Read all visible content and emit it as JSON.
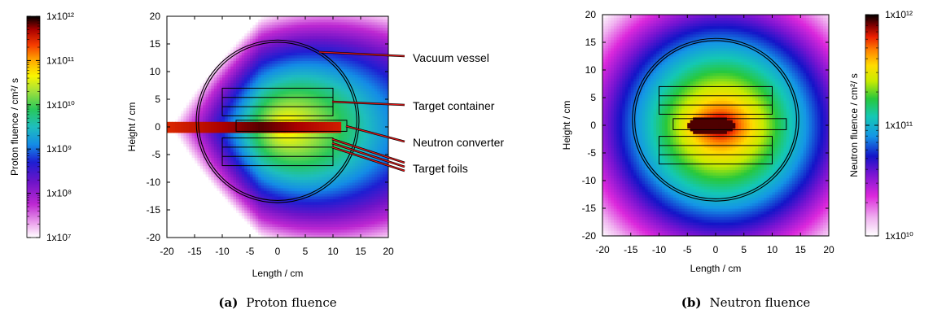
{
  "chart_data": [
    {
      "type": "heatmap",
      "panel_label": "(a)",
      "caption": "Proton fluence",
      "xlabel": "Length / cm",
      "ylabel": "Height / cm",
      "xlim": [
        -20,
        20
      ],
      "ylim": [
        -20,
        20
      ],
      "xticks": [
        "-20",
        "-15",
        "-10",
        "-5",
        "0",
        "5",
        "10",
        "15",
        "20"
      ],
      "yticks": [
        "20",
        "15",
        "10",
        "5",
        "0",
        "-5",
        "-10",
        "-15",
        "-20"
      ],
      "colorbar": {
        "label": "Proton fluence / cm²/ s",
        "scale": "log",
        "range": [
          10000000.0,
          1000000000000.0
        ],
        "tick_labels": [
          "1x10¹²",
          "1x10¹¹",
          "1x10¹⁰",
          "1x10⁹",
          "1x10⁸",
          "1x10⁷"
        ],
        "position": "left"
      },
      "annotations": [
        "Vacuum vessel",
        "Target container",
        "Neutron converter",
        "Target foils"
      ],
      "geometry_cm": {
        "vessel_center": [
          0,
          1
        ],
        "vessel_radius": [
          14.3,
          14.7
        ],
        "target_container_upper": [
          -10,
          2,
          10,
          7
        ],
        "target_container_lower": [
          -10,
          -7,
          10,
          -2
        ],
        "neutron_converter": [
          -7.5,
          -0.8,
          12.5,
          1.2
        ],
        "beam_origin_x": -20,
        "beam_halfwidth": 1.0
      }
    },
    {
      "type": "heatmap",
      "panel_label": "(b)",
      "caption": "Neutron fluence",
      "xlabel": "Length / cm",
      "ylabel": "Height / cm",
      "xlim": [
        -20,
        20
      ],
      "ylim": [
        -20,
        20
      ],
      "xticks": [
        "-20",
        "-15",
        "-10",
        "-5",
        "0",
        "5",
        "10",
        "15",
        "20"
      ],
      "yticks": [
        "20",
        "15",
        "10",
        "5",
        "0",
        "-5",
        "-10",
        "-15",
        "-20"
      ],
      "colorbar": {
        "label": "Neutron fluence / cm²/ s",
        "scale": "log",
        "range": [
          10000000000.0,
          1000000000000.0
        ],
        "tick_labels": [
          "1x10¹²",
          "1x10¹¹",
          "1x10¹⁰"
        ],
        "position": "right"
      },
      "geometry_cm": {
        "vessel_center": [
          0,
          1
        ],
        "vessel_radius": [
          14.3,
          14.7
        ],
        "target_container_upper": [
          -10,
          2,
          10,
          7
        ],
        "target_container_lower": [
          -10,
          -7,
          10,
          -2
        ],
        "neutron_converter": [
          -7.5,
          -0.8,
          12.5,
          1.2
        ],
        "hotspot_center": [
          -2,
          0
        ]
      }
    }
  ]
}
